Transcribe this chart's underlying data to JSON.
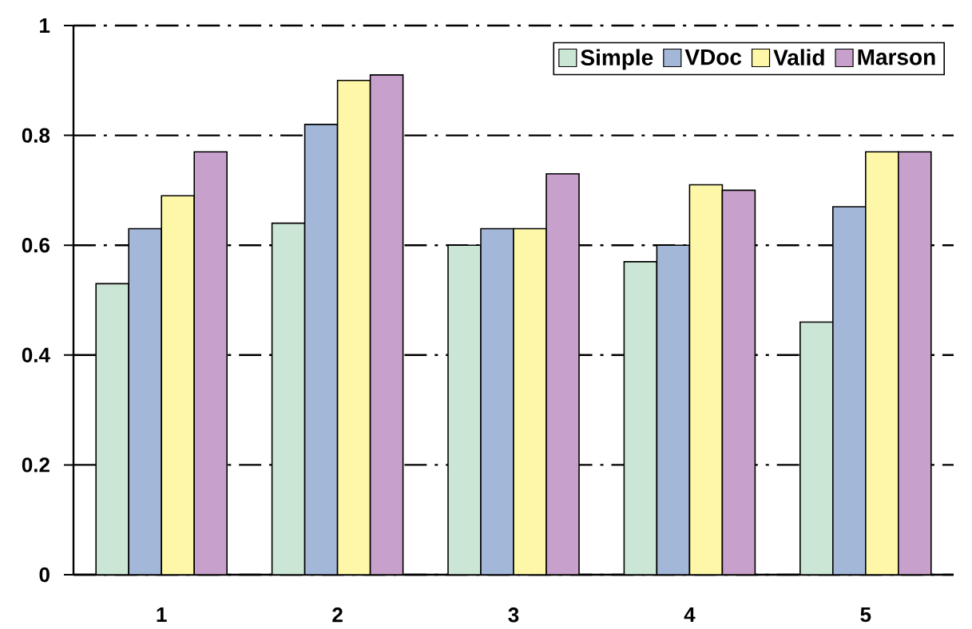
{
  "chart_data": {
    "type": "bar",
    "categories": [
      "1",
      "2",
      "3",
      "4",
      "5"
    ],
    "series": [
      {
        "name": "Simple",
        "color": "#cce6d6",
        "values": [
          0.53,
          0.64,
          0.6,
          0.57,
          0.46
        ]
      },
      {
        "name": "VDoc",
        "color": "#a3b8d8",
        "values": [
          0.63,
          0.82,
          0.63,
          0.6,
          0.67
        ]
      },
      {
        "name": "Valid",
        "color": "#fff7a8",
        "values": [
          0.69,
          0.9,
          0.63,
          0.71,
          0.77
        ]
      },
      {
        "name": "Marson",
        "color": "#c7a0cb",
        "values": [
          0.77,
          0.91,
          0.73,
          0.7,
          0.77
        ]
      }
    ],
    "ylim": [
      0,
      1
    ],
    "yticks": [
      0,
      0.2,
      0.4,
      0.6,
      0.8,
      1
    ],
    "grid": "y",
    "legend": "top right"
  }
}
